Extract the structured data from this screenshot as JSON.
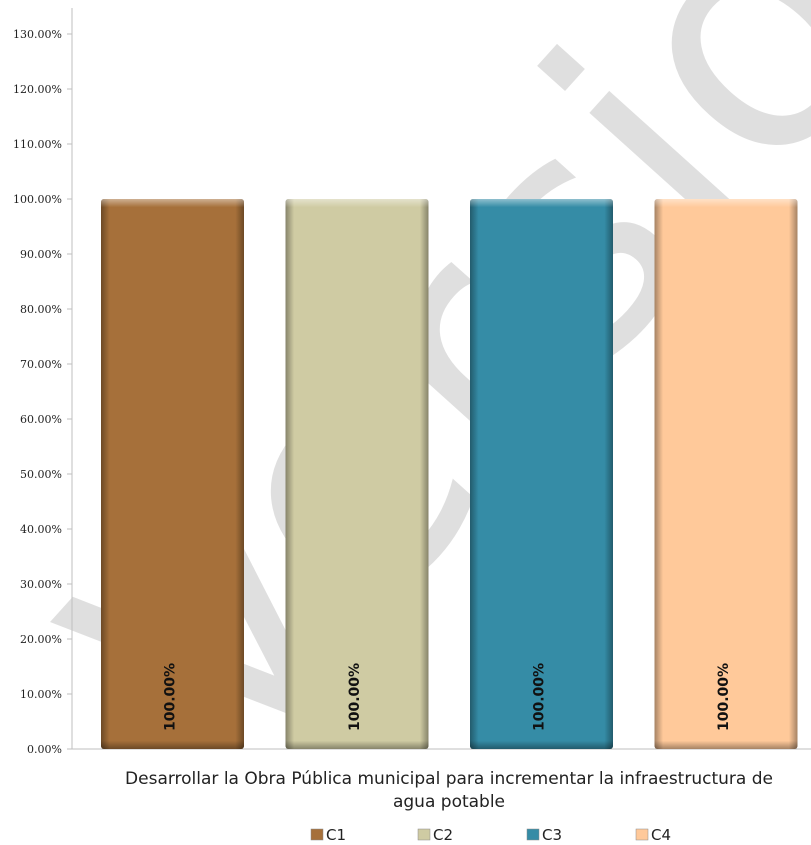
{
  "watermark": "Versión Pública",
  "chart_data": {
    "type": "bar",
    "title": "",
    "xlabel": "",
    "ylabel": "",
    "categories": [
      "Desarrollar la Obra Pública municipal para incrementar la infraestructura de agua potable"
    ],
    "category_lines": [
      "Desarrollar la Obra Pública municipal para incrementar la infraestructura de",
      "agua potable"
    ],
    "series": [
      {
        "name": "C1",
        "values": [
          100
        ],
        "label": "100.00%",
        "color": "#A6703A"
      },
      {
        "name": "C2",
        "values": [
          100
        ],
        "label": "100.00%",
        "color": "#CFCBA3"
      },
      {
        "name": "C3",
        "values": [
          100
        ],
        "label": "100.00%",
        "color": "#358CA6"
      },
      {
        "name": "C4",
        "values": [
          100
        ],
        "label": "100.00%",
        "color": "#FFC99A"
      }
    ],
    "ylim": [
      0,
      130
    ],
    "yticks": [
      0,
      10,
      20,
      30,
      40,
      50,
      60,
      70,
      80,
      90,
      100,
      110,
      120,
      130
    ],
    "ytick_labels": [
      "0.00%",
      "10.00%",
      "20.00%",
      "30.00%",
      "40.00%",
      "50.00%",
      "60.00%",
      "70.00%",
      "80.00%",
      "90.00%",
      "100.00%",
      "110.00%",
      "120.00%",
      "130.00%"
    ],
    "grid": false,
    "legend_position": "bottom"
  }
}
